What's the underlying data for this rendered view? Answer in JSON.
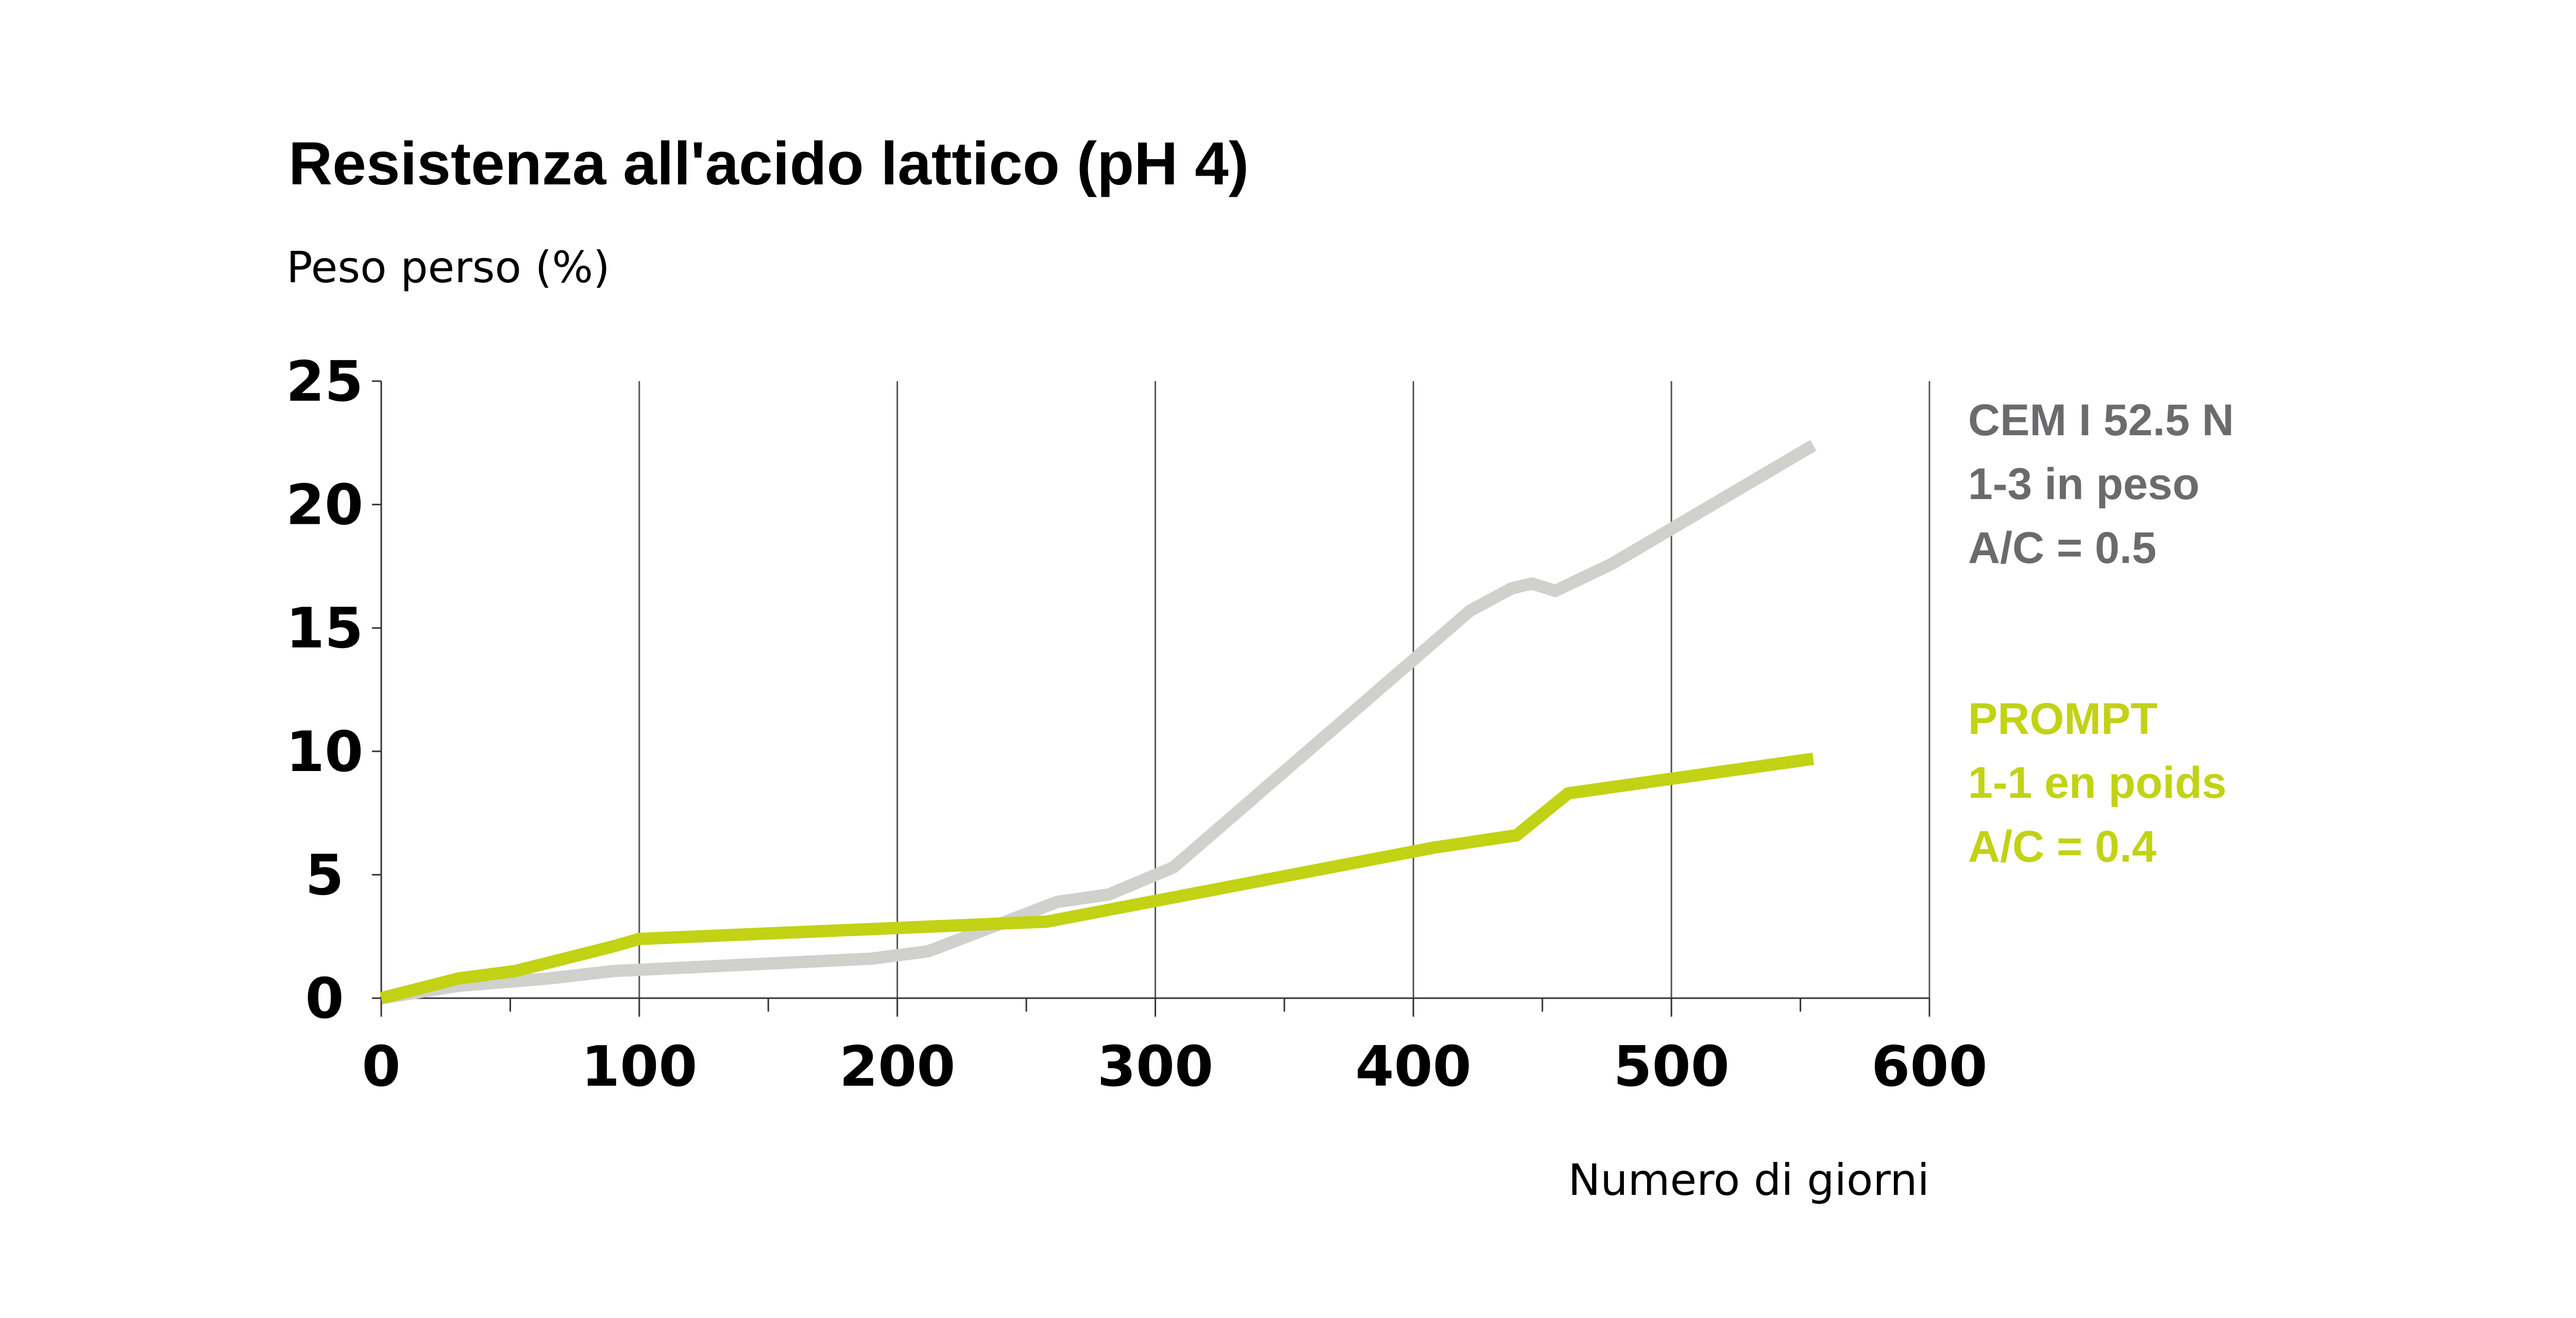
{
  "chart_data": {
    "type": "line",
    "title": "Resistenza all'acido lattico (pH 4)",
    "ylabel": "Peso perso (%)",
    "xlabel": "Numero di giorni",
    "xlim": [
      0,
      600
    ],
    "ylim": [
      0,
      25
    ],
    "xticks": [
      "0",
      "100",
      "200",
      "300",
      "400",
      "500",
      "600"
    ],
    "yticks": [
      "0",
      "5",
      "10",
      "15",
      "20",
      "25"
    ],
    "grid": "vertical",
    "legend_position": "right",
    "series": [
      {
        "name": "CEM I 52.5 N",
        "legend_lines": [
          "CEM I 52.5 N",
          "1-3 in peso",
          "A/C = 0.5"
        ],
        "color": "#d0d0cc",
        "label_color": "#6b6b6d",
        "x": [
          0,
          30,
          65,
          90,
          190,
          212,
          262,
          282,
          307,
          422,
          438,
          446,
          455,
          477,
          555
        ],
        "y": [
          0,
          0.5,
          0.8,
          1.1,
          1.6,
          1.9,
          3.9,
          4.2,
          5.3,
          15.7,
          16.6,
          16.8,
          16.5,
          17.6,
          22.4
        ]
      },
      {
        "name": "PROMPT",
        "legend_lines": [
          "PROMPT",
          "1-1 en poids",
          "A/C = 0.4"
        ],
        "color": "#c2d214",
        "label_color": "#c2d214",
        "x": [
          0,
          30,
          52,
          90,
          100,
          258,
          408,
          440,
          460,
          555
        ],
        "y": [
          0,
          0.8,
          1.1,
          2.1,
          2.4,
          3.1,
          6.1,
          6.6,
          8.3,
          9.7
        ]
      }
    ]
  }
}
